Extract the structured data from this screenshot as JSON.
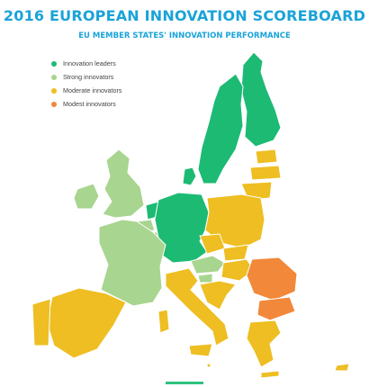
{
  "header": {
    "title": "2016 EUROPEAN INNOVATION SCOREBOARD",
    "subtitle": "EU MEMBER STATES' INNOVATION PERFORMANCE"
  },
  "colors": {
    "title": "#1aa3d8",
    "innovation_leaders": "#1dba74",
    "strong_innovators": "#a8d58f",
    "moderate_innovators": "#eebe22",
    "modest_innovators": "#f2883a",
    "legend_text": "#444444",
    "bottom_accent": "#2ec27e"
  },
  "legend": {
    "items": [
      {
        "label": "Innovation leaders",
        "color": "#1dba74"
      },
      {
        "label": "Strong innovators",
        "color": "#a8d58f"
      },
      {
        "label": "Moderate innovators",
        "color": "#eebe22"
      },
      {
        "label": "Modest innovators",
        "color": "#f2883a"
      }
    ]
  },
  "map": {
    "regions": [
      {
        "name": "sweden",
        "category": "innovation_leaders"
      },
      {
        "name": "finland",
        "category": "innovation_leaders"
      },
      {
        "name": "denmark",
        "category": "innovation_leaders"
      },
      {
        "name": "germany",
        "category": "innovation_leaders"
      },
      {
        "name": "netherlands",
        "category": "innovation_leaders"
      },
      {
        "name": "united-kingdom",
        "category": "strong_innovators"
      },
      {
        "name": "ireland",
        "category": "strong_innovators"
      },
      {
        "name": "france",
        "category": "strong_innovators"
      },
      {
        "name": "belgium",
        "category": "strong_innovators"
      },
      {
        "name": "luxembourg",
        "category": "strong_innovators"
      },
      {
        "name": "austria",
        "category": "strong_innovators"
      },
      {
        "name": "slovenia",
        "category": "strong_innovators"
      },
      {
        "name": "spain",
        "category": "moderate_innovators"
      },
      {
        "name": "portugal",
        "category": "moderate_innovators"
      },
      {
        "name": "italy",
        "category": "moderate_innovators"
      },
      {
        "name": "estonia",
        "category": "moderate_innovators"
      },
      {
        "name": "latvia",
        "category": "moderate_innovators"
      },
      {
        "name": "lithuania",
        "category": "moderate_innovators"
      },
      {
        "name": "poland",
        "category": "moderate_innovators"
      },
      {
        "name": "czech-republic",
        "category": "moderate_innovators"
      },
      {
        "name": "slovakia",
        "category": "moderate_innovators"
      },
      {
        "name": "hungary",
        "category": "moderate_innovators"
      },
      {
        "name": "croatia",
        "category": "moderate_innovators"
      },
      {
        "name": "greece",
        "category": "moderate_innovators"
      },
      {
        "name": "cyprus",
        "category": "moderate_innovators"
      },
      {
        "name": "malta",
        "category": "moderate_innovators"
      },
      {
        "name": "romania",
        "category": "modest_innovators"
      },
      {
        "name": "bulgaria",
        "category": "modest_innovators"
      }
    ]
  }
}
